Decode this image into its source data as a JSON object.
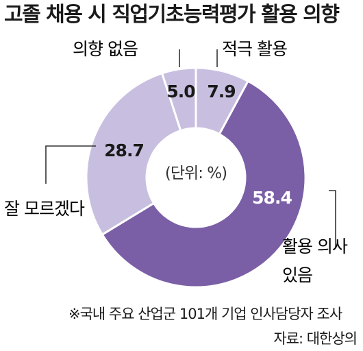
{
  "chart_data": {
    "type": "pie",
    "title": "고졸 채용 시 직업기초능력평가 활용 의향",
    "unit_label": "(단위: %)",
    "slices": [
      {
        "label": "적극 활용",
        "value": 7.9,
        "color": "#c8bfe0",
        "value_text": "7.9"
      },
      {
        "label": "활용 의사 있음",
        "value": 58.4,
        "color": "#7a5fa6",
        "value_text": "58.4"
      },
      {
        "label": "잘 모르겠다",
        "value": 28.7,
        "color": "#c8bfe0",
        "value_text": "28.7"
      },
      {
        "label": "의향 없음",
        "value": 5.0,
        "color": "#c8bfe0",
        "value_text": "5.0"
      }
    ],
    "note": "※국내 주요 산업군 101개 기업 인사담당자 조사",
    "source": "자료: 대한상의"
  }
}
